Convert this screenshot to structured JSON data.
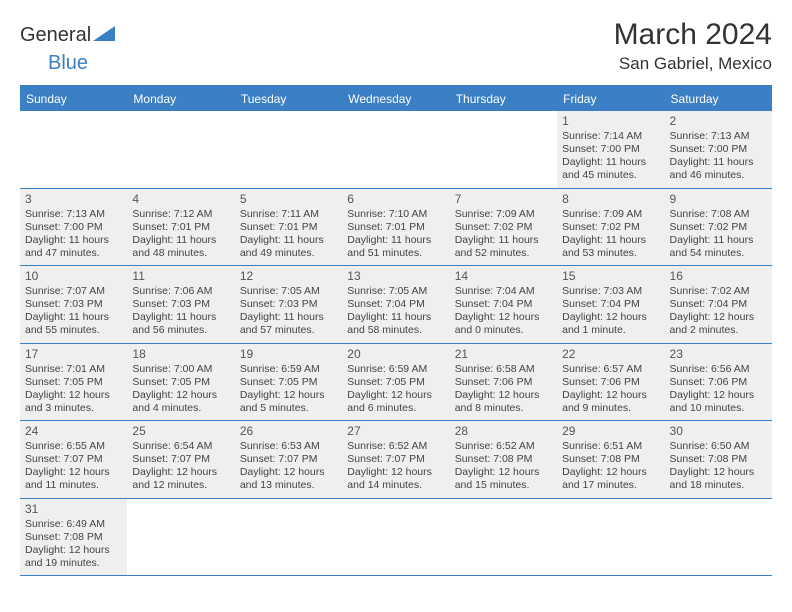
{
  "branding": {
    "logo_part1": "General",
    "logo_part2": "Blue",
    "logo_triangle_color": "#3b7fc4"
  },
  "header": {
    "month_title": "March 2024",
    "location": "San Gabriel, Mexico"
  },
  "colors": {
    "header_bar": "#3b7fc4",
    "shaded_cell": "#efefef",
    "row_divider": "#3b7fc4",
    "text": "#333333"
  },
  "days_of_week": [
    "Sunday",
    "Monday",
    "Tuesday",
    "Wednesday",
    "Thursday",
    "Friday",
    "Saturday"
  ],
  "weeks": [
    [
      {
        "blank": true
      },
      {
        "blank": true
      },
      {
        "blank": true
      },
      {
        "blank": true
      },
      {
        "blank": true
      },
      {
        "day": "1",
        "sunrise": "Sunrise: 7:14 AM",
        "sunset": "Sunset: 7:00 PM",
        "daylight": "Daylight: 11 hours and 45 minutes."
      },
      {
        "day": "2",
        "sunrise": "Sunrise: 7:13 AM",
        "sunset": "Sunset: 7:00 PM",
        "daylight": "Daylight: 11 hours and 46 minutes."
      }
    ],
    [
      {
        "day": "3",
        "sunrise": "Sunrise: 7:13 AM",
        "sunset": "Sunset: 7:00 PM",
        "daylight": "Daylight: 11 hours and 47 minutes."
      },
      {
        "day": "4",
        "sunrise": "Sunrise: 7:12 AM",
        "sunset": "Sunset: 7:01 PM",
        "daylight": "Daylight: 11 hours and 48 minutes."
      },
      {
        "day": "5",
        "sunrise": "Sunrise: 7:11 AM",
        "sunset": "Sunset: 7:01 PM",
        "daylight": "Daylight: 11 hours and 49 minutes."
      },
      {
        "day": "6",
        "sunrise": "Sunrise: 7:10 AM",
        "sunset": "Sunset: 7:01 PM",
        "daylight": "Daylight: 11 hours and 51 minutes."
      },
      {
        "day": "7",
        "sunrise": "Sunrise: 7:09 AM",
        "sunset": "Sunset: 7:02 PM",
        "daylight": "Daylight: 11 hours and 52 minutes."
      },
      {
        "day": "8",
        "sunrise": "Sunrise: 7:09 AM",
        "sunset": "Sunset: 7:02 PM",
        "daylight": "Daylight: 11 hours and 53 minutes."
      },
      {
        "day": "9",
        "sunrise": "Sunrise: 7:08 AM",
        "sunset": "Sunset: 7:02 PM",
        "daylight": "Daylight: 11 hours and 54 minutes."
      }
    ],
    [
      {
        "day": "10",
        "sunrise": "Sunrise: 7:07 AM",
        "sunset": "Sunset: 7:03 PM",
        "daylight": "Daylight: 11 hours and 55 minutes."
      },
      {
        "day": "11",
        "sunrise": "Sunrise: 7:06 AM",
        "sunset": "Sunset: 7:03 PM",
        "daylight": "Daylight: 11 hours and 56 minutes."
      },
      {
        "day": "12",
        "sunrise": "Sunrise: 7:05 AM",
        "sunset": "Sunset: 7:03 PM",
        "daylight": "Daylight: 11 hours and 57 minutes."
      },
      {
        "day": "13",
        "sunrise": "Sunrise: 7:05 AM",
        "sunset": "Sunset: 7:04 PM",
        "daylight": "Daylight: 11 hours and 58 minutes."
      },
      {
        "day": "14",
        "sunrise": "Sunrise: 7:04 AM",
        "sunset": "Sunset: 7:04 PM",
        "daylight": "Daylight: 12 hours and 0 minutes."
      },
      {
        "day": "15",
        "sunrise": "Sunrise: 7:03 AM",
        "sunset": "Sunset: 7:04 PM",
        "daylight": "Daylight: 12 hours and 1 minute."
      },
      {
        "day": "16",
        "sunrise": "Sunrise: 7:02 AM",
        "sunset": "Sunset: 7:04 PM",
        "daylight": "Daylight: 12 hours and 2 minutes."
      }
    ],
    [
      {
        "day": "17",
        "sunrise": "Sunrise: 7:01 AM",
        "sunset": "Sunset: 7:05 PM",
        "daylight": "Daylight: 12 hours and 3 minutes."
      },
      {
        "day": "18",
        "sunrise": "Sunrise: 7:00 AM",
        "sunset": "Sunset: 7:05 PM",
        "daylight": "Daylight: 12 hours and 4 minutes."
      },
      {
        "day": "19",
        "sunrise": "Sunrise: 6:59 AM",
        "sunset": "Sunset: 7:05 PM",
        "daylight": "Daylight: 12 hours and 5 minutes."
      },
      {
        "day": "20",
        "sunrise": "Sunrise: 6:59 AM",
        "sunset": "Sunset: 7:05 PM",
        "daylight": "Daylight: 12 hours and 6 minutes."
      },
      {
        "day": "21",
        "sunrise": "Sunrise: 6:58 AM",
        "sunset": "Sunset: 7:06 PM",
        "daylight": "Daylight: 12 hours and 8 minutes."
      },
      {
        "day": "22",
        "sunrise": "Sunrise: 6:57 AM",
        "sunset": "Sunset: 7:06 PM",
        "daylight": "Daylight: 12 hours and 9 minutes."
      },
      {
        "day": "23",
        "sunrise": "Sunrise: 6:56 AM",
        "sunset": "Sunset: 7:06 PM",
        "daylight": "Daylight: 12 hours and 10 minutes."
      }
    ],
    [
      {
        "day": "24",
        "sunrise": "Sunrise: 6:55 AM",
        "sunset": "Sunset: 7:07 PM",
        "daylight": "Daylight: 12 hours and 11 minutes."
      },
      {
        "day": "25",
        "sunrise": "Sunrise: 6:54 AM",
        "sunset": "Sunset: 7:07 PM",
        "daylight": "Daylight: 12 hours and 12 minutes."
      },
      {
        "day": "26",
        "sunrise": "Sunrise: 6:53 AM",
        "sunset": "Sunset: 7:07 PM",
        "daylight": "Daylight: 12 hours and 13 minutes."
      },
      {
        "day": "27",
        "sunrise": "Sunrise: 6:52 AM",
        "sunset": "Sunset: 7:07 PM",
        "daylight": "Daylight: 12 hours and 14 minutes."
      },
      {
        "day": "28",
        "sunrise": "Sunrise: 6:52 AM",
        "sunset": "Sunset: 7:08 PM",
        "daylight": "Daylight: 12 hours and 15 minutes."
      },
      {
        "day": "29",
        "sunrise": "Sunrise: 6:51 AM",
        "sunset": "Sunset: 7:08 PM",
        "daylight": "Daylight: 12 hours and 17 minutes."
      },
      {
        "day": "30",
        "sunrise": "Sunrise: 6:50 AM",
        "sunset": "Sunset: 7:08 PM",
        "daylight": "Daylight: 12 hours and 18 minutes."
      }
    ],
    [
      {
        "day": "31",
        "sunrise": "Sunrise: 6:49 AM",
        "sunset": "Sunset: 7:08 PM",
        "daylight": "Daylight: 12 hours and 19 minutes."
      },
      {
        "blank": true
      },
      {
        "blank": true
      },
      {
        "blank": true
      },
      {
        "blank": true
      },
      {
        "blank": true
      },
      {
        "blank": true
      }
    ]
  ]
}
